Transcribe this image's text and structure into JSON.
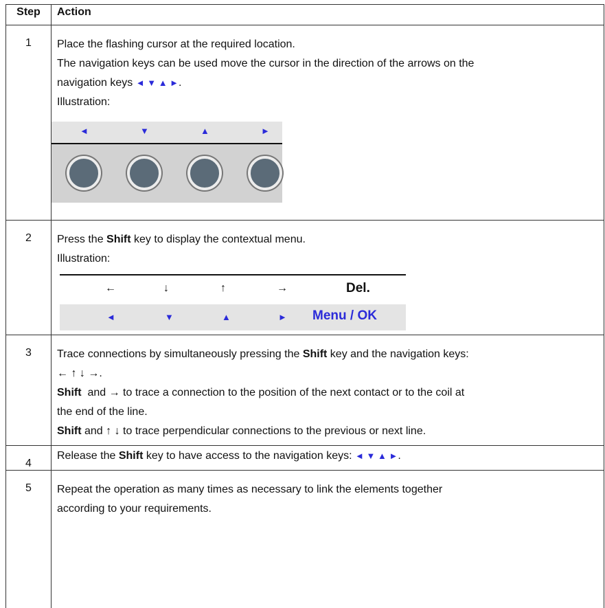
{
  "table": {
    "header": [
      "Step",
      "Action"
    ],
    "rows": [
      {
        "step": "1",
        "lines": [
          [
            {
              "text": "Place the flashing cursor at the required location."
            }
          ],
          [
            {
              "text": "The navigation keys can be used move the cursor in the direction of the arrows on the"
            }
          ],
          [
            {
              "text": "navigation keys "
            },
            {
              "text": "◄ ▼ ▲ ►",
              "color": "#2b2bd9"
            },
            {
              "text": "."
            }
          ],
          [
            {
              "text": "Illustration:"
            }
          ]
        ],
        "illustration": {
          "type": "keypad",
          "keys": [
            "◄",
            "▼",
            "▲",
            "►"
          ],
          "color": "#2b2bd9"
        }
      },
      {
        "step": "2",
        "lines": [
          [
            {
              "text": "Press the "
            },
            {
              "text": "Shift",
              "bold": true
            },
            {
              "text": " key to display the contextual menu."
            }
          ],
          [
            {
              "text": "Illustration:"
            }
          ]
        ],
        "illustration": {
          "type": "menu",
          "top": [
            "←",
            "↓",
            "↑",
            "→",
            "Del."
          ],
          "bottom": [
            "◄",
            "▼",
            "▲",
            "►",
            "Menu / OK"
          ],
          "color": "#2b2bd9"
        }
      },
      {
        "step": "3",
        "lines": [
          [
            {
              "text": "Trace connections by simultaneously pressing the "
            },
            {
              "text": "Shift",
              "bold": true
            },
            {
              "text": " key and the navigation keys:"
            }
          ],
          [
            {
              "text": "← ↑ ↓ →."
            }
          ],
          [
            {
              "text": "Shift",
              "bold": true
            },
            {
              "text": "  and → to trace a connection to the position of the next contact or to the coil at"
            }
          ],
          [
            {
              "text": "the end of the line."
            }
          ],
          [
            {
              "text": "Shift",
              "bold": true
            },
            {
              "text": " and ↑ ↓ to trace perpendicular connections to the previous or next line."
            }
          ]
        ]
      },
      {
        "step": "4",
        "lines": [
          [
            {
              "text": "Release the "
            },
            {
              "text": "Shift",
              "bold": true
            },
            {
              "text": " key to have access to the navigation keys: "
            },
            {
              "text": "◄ ▼ ▲ ►",
              "color": "#2b2bd9"
            },
            {
              "text": "."
            }
          ]
        ]
      },
      {
        "step": "5",
        "lines": [
          [
            {
              "text": "Repeat the operation as many times as necessary to link the elements together"
            }
          ],
          [
            {
              "text": "according to your requirements."
            }
          ]
        ]
      }
    ]
  }
}
